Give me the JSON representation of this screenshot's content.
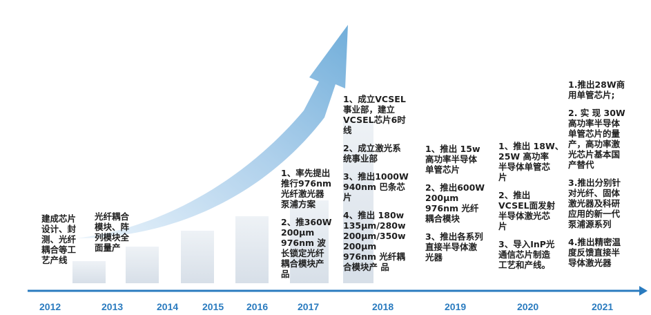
{
  "timeline": {
    "years": [
      "2012",
      "2013",
      "2014",
      "2015",
      "2016",
      "2017",
      "2018",
      "2019",
      "2020",
      "2021"
    ]
  },
  "milestones": {
    "m2012": [
      "建成芯片\n设计、封\n测、光纤\n耦合等工\n艺产线"
    ],
    "m2013": [
      "光纤耦合\n模块、阵\n列模块全\n面量产"
    ],
    "m2017": [
      "1、率先提出\n推行976nm\n光纤激光器\n泵浦方案",
      "2、推360W\n200μm\n976nm 波\n长锁定光纤\n耦合模块产\n品"
    ],
    "m2018": [
      "1、成立VCSEL\n事业部，建立\nVCSEL芯片6时\n线",
      "2、成立激光系\n统事业部",
      "3、推出1000W\n940nm 巴条芯\n片",
      "4、推出 180w\n135μm/280w\n200μm/350w\n200μm\n976nm 光纤耦\n合模块产 品"
    ],
    "m2019": [
      "1、推出 15w\n高功率半导体\n单管芯片",
      "2、推出600W\n200μm\n976nm 光纤\n耦合模块",
      "3、推出各系列\n直接半导体激\n光器"
    ],
    "m2020": [
      "1、推出 18W、\n25W 高功率\n半导体单管芯\n片",
      "2、推出\nVCSEL面发射\n半导体激光芯\n片",
      "3、导入InP光\n通信芯片制造\n工艺和产线。"
    ],
    "m2021": [
      "1.推出28W商\n用单管芯片;",
      "2. 实 现 30W\n高功率半导体\n单管芯片的量\n产，高功率激\n光芯片基本国\n产替代",
      "3.推出分别针\n对光纤、固体\n激光器及科研\n应用的新一代\n泵浦源系列",
      "4.推出精密温\n度反馈直接半\n导体激光器"
    ]
  },
  "colors": {
    "timeline": "#2a7bbf",
    "arrow": "#8fc0e6",
    "block": "#dde5ee"
  }
}
